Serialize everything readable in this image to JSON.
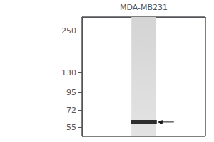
{
  "chart_data": {
    "type": "gel",
    "categories": [
      "MDA-MB231"
    ],
    "values": [
      60
    ],
    "color": "#1a1a1a",
    "log": "y",
    "ylim": [
      48,
      310
    ],
    "yticks": [
      250,
      130,
      95,
      72,
      55
    ],
    "grid": false
  }
}
